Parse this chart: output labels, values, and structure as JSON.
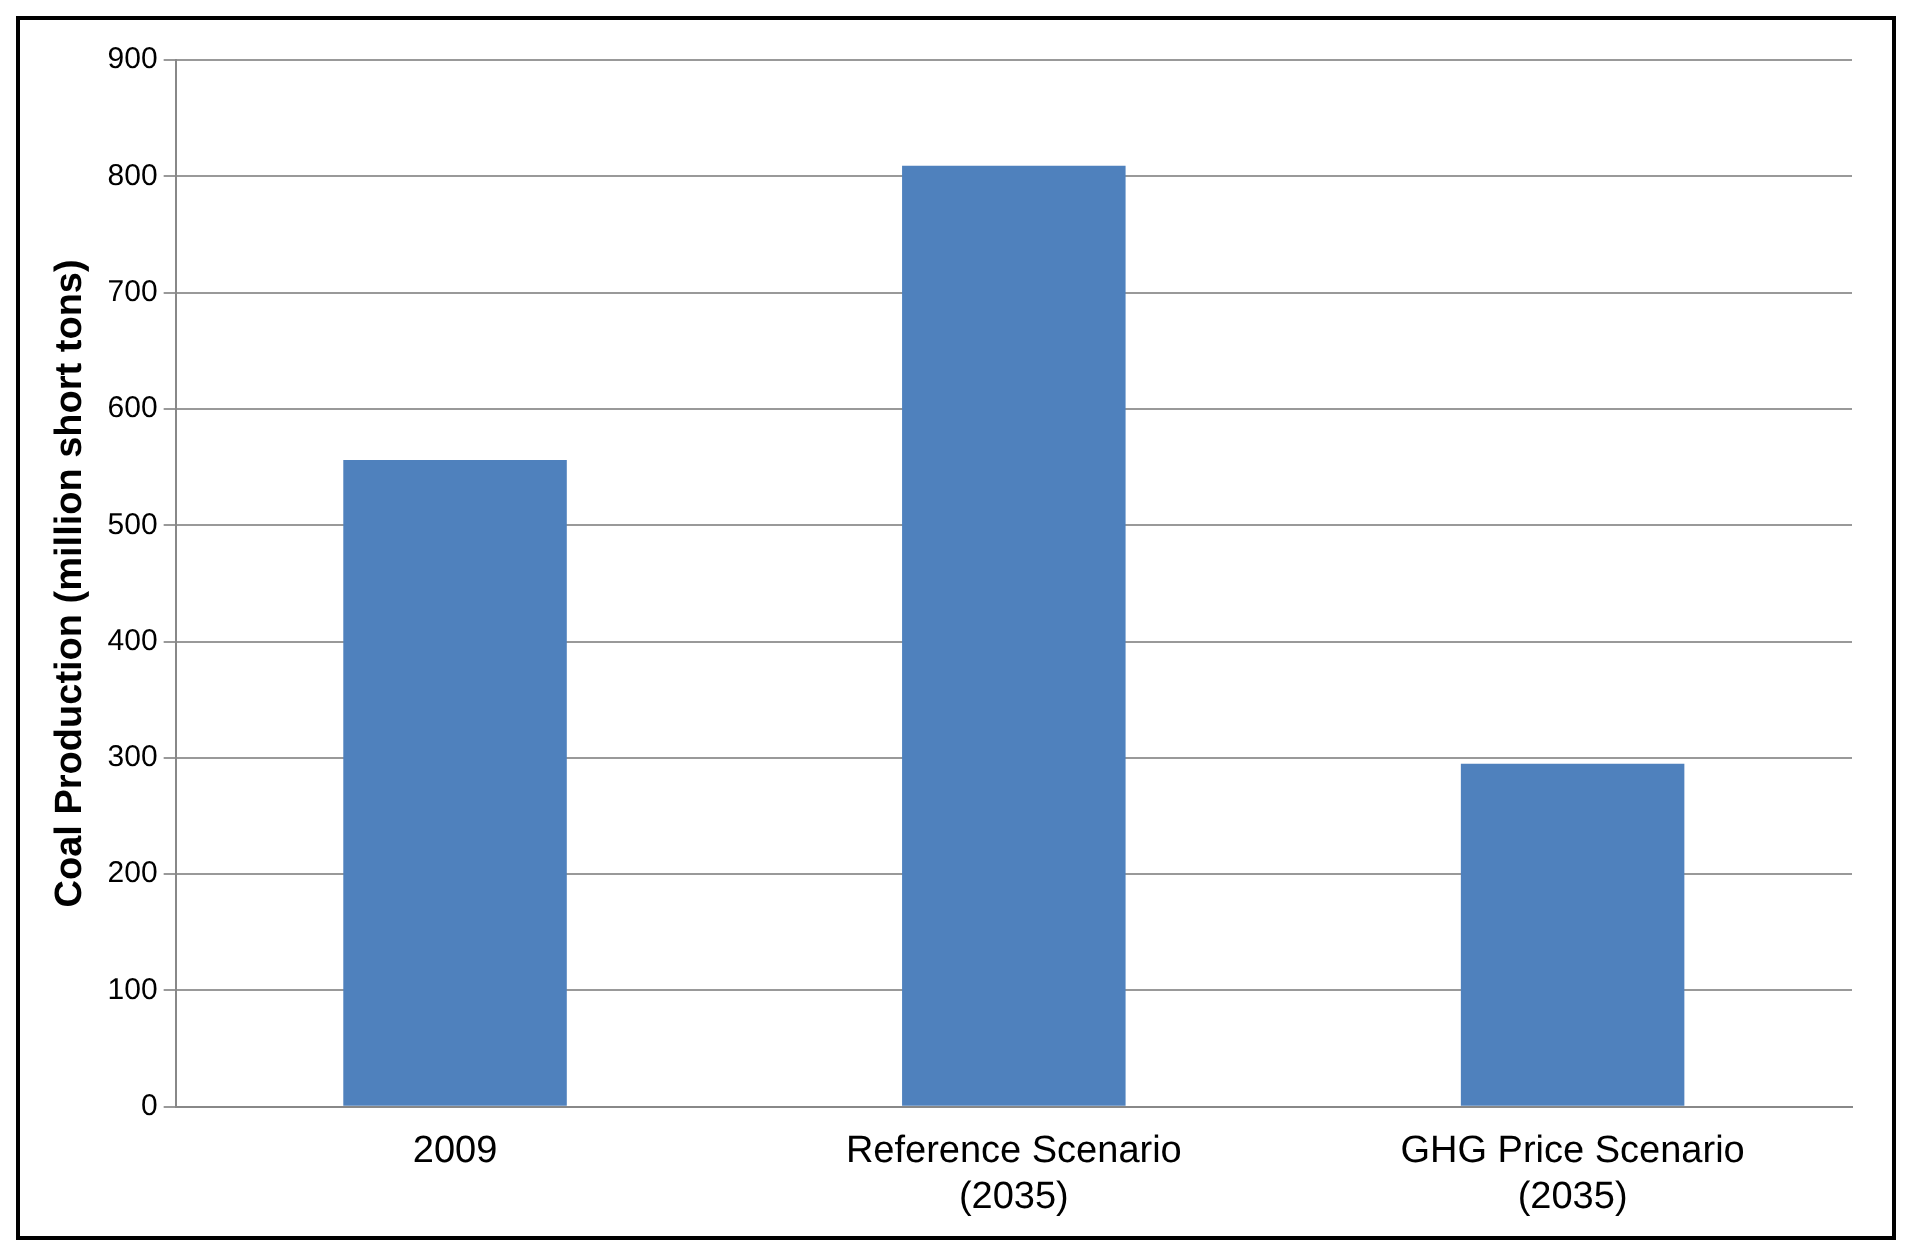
{
  "chart_data": {
    "type": "bar",
    "ylabel": "Coal Production (million short tons)",
    "categories": [
      "2009",
      "Reference Scenario (2035)",
      "GHG Price Scenario (2035)"
    ],
    "values": [
      556,
      809,
      295
    ],
    "color": "#4f81bd",
    "ylim": [
      0,
      900
    ],
    "yticks": [
      0,
      100,
      200,
      300,
      400,
      500,
      600,
      700,
      800,
      900
    ],
    "grid": "y"
  }
}
